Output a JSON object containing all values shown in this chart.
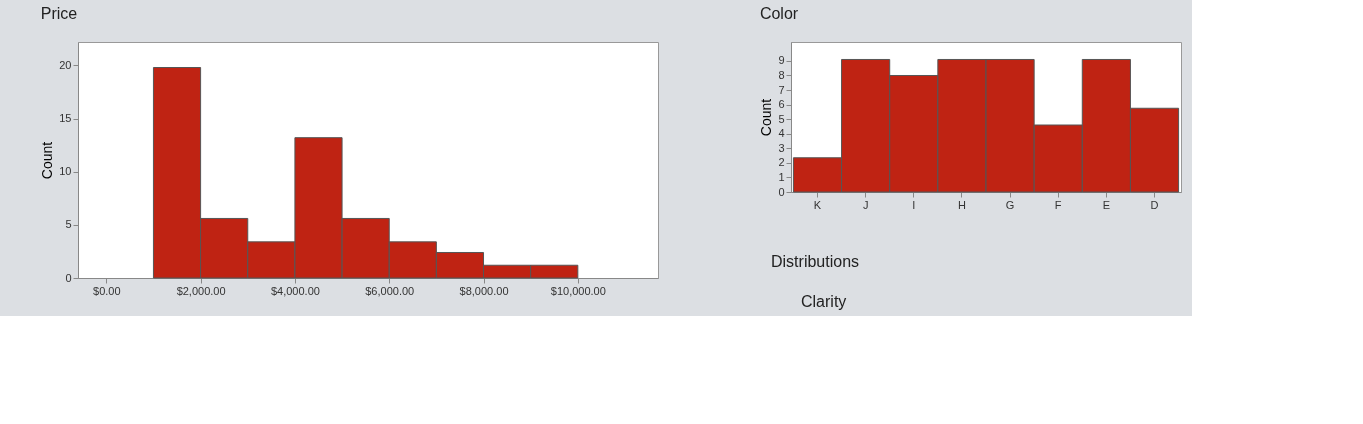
{
  "chart_data": [
    {
      "type": "histogram",
      "title": "Price",
      "ylabel": "Count",
      "color": "#bf2313",
      "bins": [
        1000,
        2000,
        3000,
        4000,
        5000,
        6000,
        7000,
        8000,
        9000,
        10000
      ],
      "values": [
        19.8,
        5.6,
        3.4,
        13.2,
        5.6,
        3.4,
        2.4,
        1.2,
        1.2
      ],
      "xlim": [
        -600,
        11700
      ],
      "xticks": [
        {
          "value": 0,
          "label": "$0.00"
        },
        {
          "value": 2000,
          "label": "$2,000.00"
        },
        {
          "value": 4000,
          "label": "$4,000.00"
        },
        {
          "value": 6000,
          "label": "$6,000.00"
        },
        {
          "value": 8000,
          "label": "$8,000.00"
        },
        {
          "value": 10000,
          "label": "$10,000.00"
        }
      ],
      "ylim": [
        0,
        22.2
      ],
      "yticks": [
        0,
        5,
        10,
        15,
        20
      ],
      "grid": false
    },
    {
      "type": "bar",
      "title": "Color",
      "ylabel": "Count",
      "color": "#bf2313",
      "categories": [
        "K",
        "J",
        "I",
        "H",
        "G",
        "F",
        "E",
        "D"
      ],
      "values": [
        2.35,
        9.1,
        8.0,
        9.1,
        9.1,
        4.6,
        9.1,
        5.75
      ],
      "ylim": [
        0,
        10.3
      ],
      "yticks": [
        0,
        1,
        2,
        3,
        4,
        5,
        6,
        7,
        8,
        9
      ],
      "grid": false,
      "annotations": [
        "Distributions",
        "Clarity"
      ]
    }
  ]
}
